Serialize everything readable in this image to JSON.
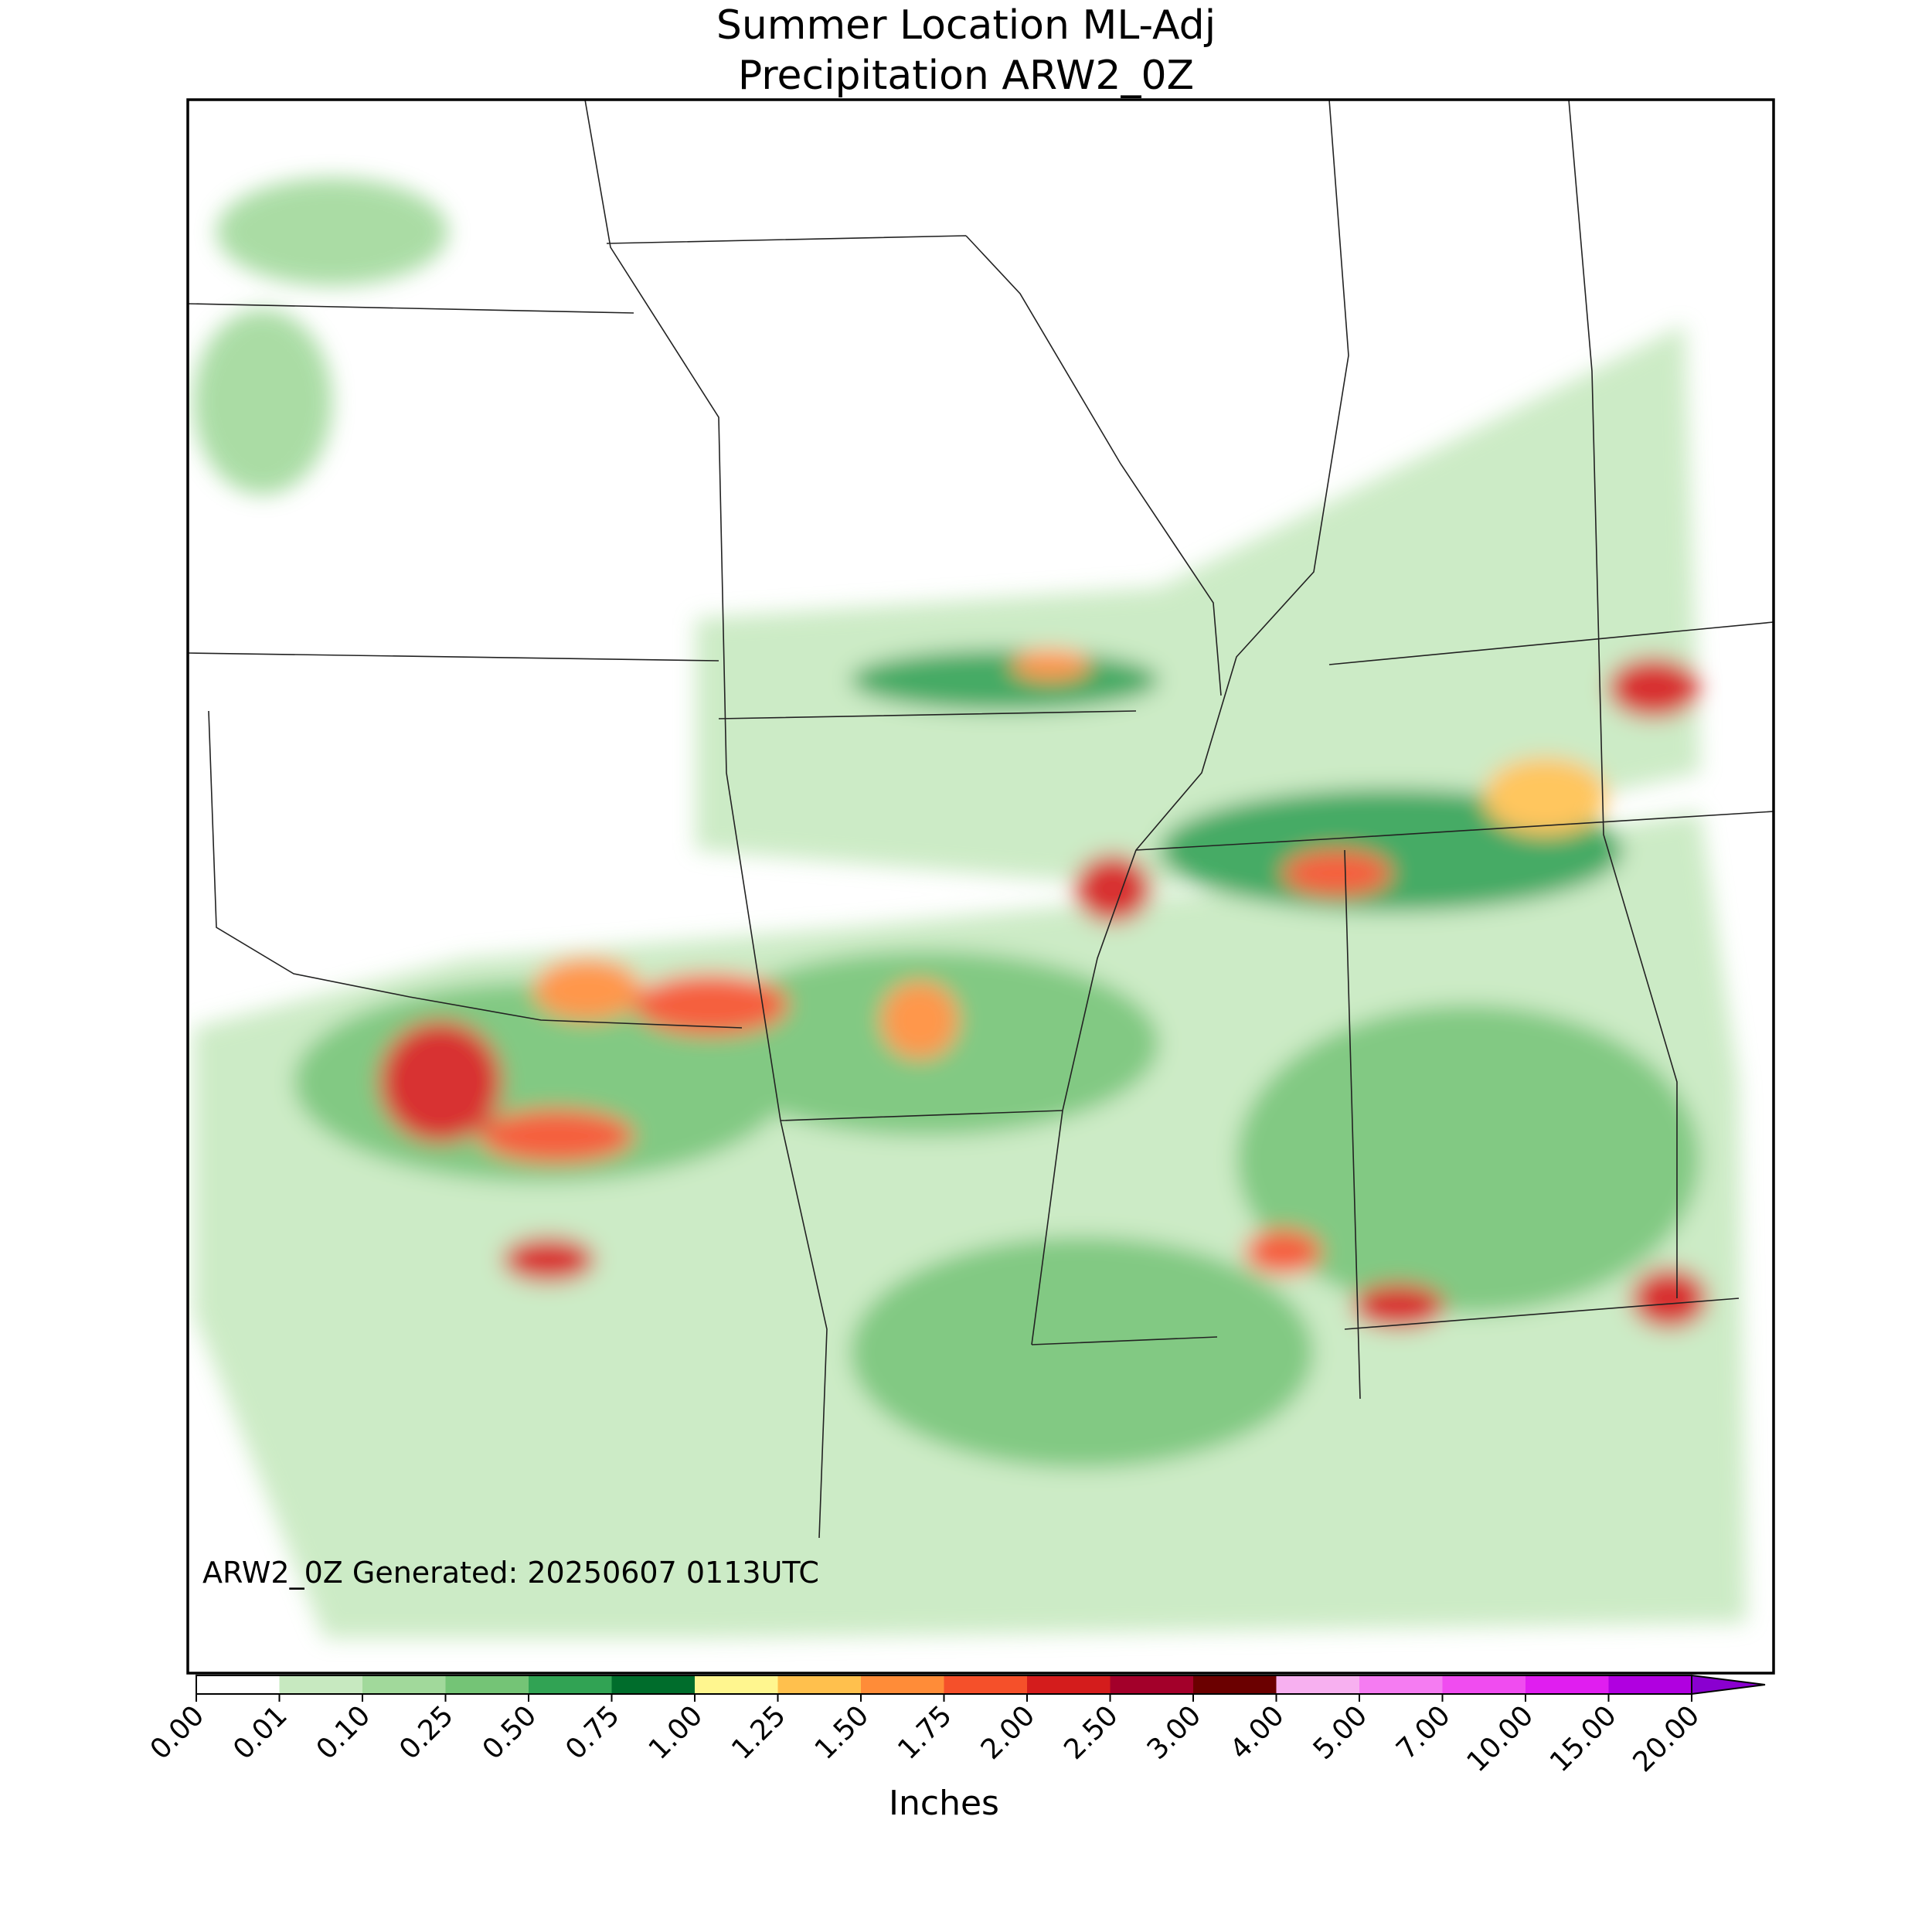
{
  "chart_data": {
    "type": "map",
    "title": [
      "Summer Location ML-Adj",
      "Precipitation ARW2_0Z"
    ],
    "annotation": "ARW2_0Z Generated: 20250607 0113UTC",
    "colorbar": {
      "label": "Inches",
      "extend": "max",
      "extend_color": "#8a00d0",
      "ticks": [
        {
          "value": 0,
          "label": "0.00"
        },
        {
          "value": 0.01,
          "label": "0.01"
        },
        {
          "value": 0.1,
          "label": "0.10"
        },
        {
          "value": 0.25,
          "label": "0.25"
        },
        {
          "value": 0.5,
          "label": "0.50"
        },
        {
          "value": 0.75,
          "label": "0.75"
        },
        {
          "value": 1,
          "label": "1.00"
        },
        {
          "value": 1.25,
          "label": "1.25"
        },
        {
          "value": 1.5,
          "label": "1.50"
        },
        {
          "value": 1.75,
          "label": "1.75"
        },
        {
          "value": 2,
          "label": "2.00"
        },
        {
          "value": 2.5,
          "label": "2.50"
        },
        {
          "value": 3,
          "label": "3.00"
        },
        {
          "value": 4,
          "label": "4.00"
        },
        {
          "value": 5,
          "label": "5.00"
        },
        {
          "value": 7,
          "label": "7.00"
        },
        {
          "value": 10,
          "label": "10.00"
        },
        {
          "value": 15,
          "label": "15.00"
        },
        {
          "value": 20,
          "label": "20.00"
        }
      ],
      "colors": [
        "#ffffff",
        "#c7e9c0",
        "#a1d99b",
        "#74c476",
        "#31a354",
        "#006d2c",
        "#fff68f",
        "#ffc04d",
        "#ff8c38",
        "#f5502a",
        "#d41c1c",
        "#a3002a",
        "#6b0000",
        "#f7b0f0",
        "#f57cf2",
        "#f04cf0",
        "#e01ef0",
        "#b000e0"
      ]
    }
  }
}
